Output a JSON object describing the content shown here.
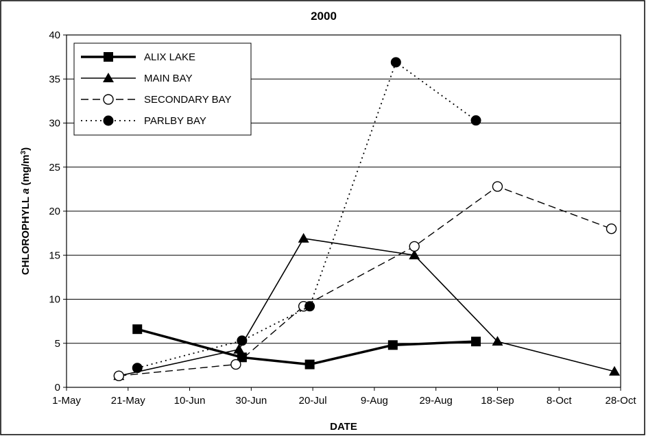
{
  "chart_data": {
    "type": "line",
    "title": "2000",
    "xlabel": "DATE",
    "ylabel": {
      "main": "CHLOROPHYLL",
      "italic": "a",
      "unit_prefix": "(mg/m",
      "unit_sup": "3",
      "unit_suffix": ")"
    },
    "x_ticks": [
      "1-May",
      "21-May",
      "10-Jun",
      "30-Jun",
      "20-Jul",
      "9-Aug",
      "29-Aug",
      "18-Sep",
      "8-Oct",
      "28-Oct"
    ],
    "x_range": [
      "2000-05-01",
      "2000-10-28"
    ],
    "ylim": [
      0,
      40
    ],
    "y_ticks": [
      0,
      5,
      10,
      15,
      20,
      25,
      30,
      35,
      40
    ],
    "grid": "horizontal",
    "legend_position": "top-left",
    "series": [
      {
        "name": "ALIX LAKE",
        "style": "thick-solid",
        "marker": "filled-square",
        "color": "#000000",
        "points": [
          {
            "x": "2000-05-24",
            "y": 6.6
          },
          {
            "x": "2000-06-27",
            "y": 3.4
          },
          {
            "x": "2000-07-19",
            "y": 2.6
          },
          {
            "x": "2000-08-15",
            "y": 4.8
          },
          {
            "x": "2000-09-11",
            "y": 5.2
          }
        ]
      },
      {
        "name": "MAIN BAY",
        "style": "solid",
        "marker": "filled-triangle",
        "color": "#000000",
        "points": [
          {
            "x": "2000-05-18",
            "y": 1.3
          },
          {
            "x": "2000-06-26",
            "y": 4.3
          },
          {
            "x": "2000-07-17",
            "y": 16.9
          },
          {
            "x": "2000-08-22",
            "y": 15.0
          },
          {
            "x": "2000-09-18",
            "y": 5.2
          },
          {
            "x": "2000-10-26",
            "y": 1.8
          }
        ]
      },
      {
        "name": "SECONDARY BAY",
        "style": "dashed",
        "marker": "open-circle",
        "color": "#000000",
        "points": [
          {
            "x": "2000-05-18",
            "y": 1.3
          },
          {
            "x": "2000-06-25",
            "y": 2.6
          },
          {
            "x": "2000-07-17",
            "y": 9.2
          },
          {
            "x": "2000-08-22",
            "y": 16.0
          },
          {
            "x": "2000-09-18",
            "y": 22.8
          },
          {
            "x": "2000-10-25",
            "y": 18.0
          }
        ]
      },
      {
        "name": "PARLBY BAY",
        "style": "dotted",
        "marker": "filled-circle",
        "color": "#000000",
        "points": [
          {
            "x": "2000-05-24",
            "y": 2.2
          },
          {
            "x": "2000-06-27",
            "y": 5.3
          },
          {
            "x": "2000-07-19",
            "y": 9.2
          },
          {
            "x": "2000-08-16",
            "y": 36.9
          },
          {
            "x": "2000-09-11",
            "y": 30.3
          }
        ]
      }
    ]
  }
}
